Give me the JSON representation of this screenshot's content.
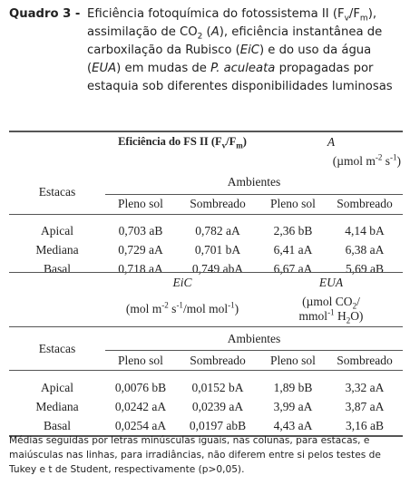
{
  "caption": {
    "label": "Quadro 3 -",
    "parts": [
      "Eficiência fotoquímica do fotossistema II (F",
      "v",
      "/F",
      "m",
      "), assimilação de CO",
      "2",
      " (",
      "A",
      "), eficiência instantânea de carboxilação da Rubisco (",
      "EiC",
      ") e do uso da água (",
      "EUA",
      ") em mudas de ",
      "P. aculeata",
      " propagadas por estaquia sob diferentes disponibilidades luminosas"
    ]
  },
  "section1": {
    "group1": [
      "Eficiência do FS II (F",
      "v",
      "/F",
      "m",
      ")"
    ],
    "group2": "A",
    "group2_unit": [
      "(µmol m",
      "-2",
      " s",
      "-1",
      ")"
    ],
    "row_header": "Estacas",
    "column_group": "Ambientes",
    "columns": [
      "Pleno sol",
      "Sombreado",
      "Pleno sol",
      "Sombreado"
    ],
    "rows": [
      [
        "Apical",
        "0,703 aB",
        "0,782 aA",
        "2,36 bB",
        "4,14 bA"
      ],
      [
        "Mediana",
        "0,729 aA",
        "0,701 bA",
        "6,41 aA",
        "6,38 aA"
      ],
      [
        "Basal",
        "0,718 aA",
        "0,749 abA",
        "6,67 aA",
        "5,69 aB"
      ]
    ]
  },
  "section2": {
    "group1": "EiC",
    "group2": "EUA",
    "group1_unit": [
      "(mol m",
      "-2",
      " s",
      "-1",
      "/mol mol",
      "-1",
      ")"
    ],
    "group2_unit": [
      "(µmol CO",
      "2",
      "/",
      "mmol",
      "-1",
      " H",
      "2",
      "O)"
    ],
    "row_header": "Estacas",
    "column_group": "Ambientes",
    "columns": [
      "Pleno sol",
      "Sombreado",
      "Pleno sol",
      "Sombreado"
    ],
    "rows": [
      [
        "Apical",
        "0,0076 bB",
        "0,0152 bA",
        "1,89 bB",
        "3,32 aA"
      ],
      [
        "Mediana",
        "0,0242 aA",
        "0,0239 aA",
        "3,99 aA",
        "3,87 aA"
      ],
      [
        "Basal",
        "0,0254 aA",
        "0,0197 abB",
        "4,43 aA",
        "3,16 aB"
      ]
    ]
  },
  "footnote": "Médias seguidas por letras minúsculas iguais, nas colunas, para estacas, e maiúsculas nas linhas, para irradiâncias, não diferem entre si pelos testes de Tukey e t de Student, respectivamente (p>0,05)."
}
